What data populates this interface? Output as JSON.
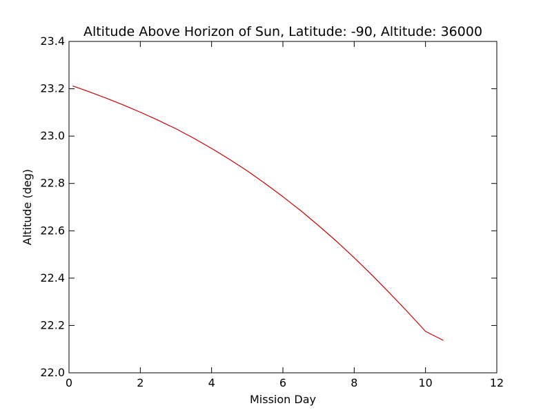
{
  "chart_data": {
    "type": "line",
    "title": "Altitude Above Horizon of Sun, Latitude: -90, Altitude: 36000",
    "xlabel": "Mission Day",
    "ylabel": "Altitude (deg)",
    "xlim": [
      0,
      12
    ],
    "ylim": [
      22.0,
      23.4
    ],
    "xticks": [
      "0",
      "2",
      "4",
      "6",
      "8",
      "10",
      "12"
    ],
    "yticks": [
      "22.0",
      "22.2",
      "22.4",
      "22.6",
      "22.8",
      "23.0",
      "23.2",
      "23.4"
    ],
    "grid": false,
    "line_color": "#cc0000",
    "series": [
      {
        "x": [
          0.1,
          0.5,
          1.0,
          1.5,
          2.0,
          2.5,
          3.0,
          3.5,
          4.0,
          4.5,
          5.0,
          5.5,
          6.0,
          6.5,
          7.0,
          7.5,
          8.0,
          8.5,
          9.0,
          9.5,
          10.0,
          10.5
        ],
        "values": [
          23.212,
          23.191,
          23.163,
          23.133,
          23.101,
          23.067,
          23.031,
          22.991,
          22.948,
          22.902,
          22.853,
          22.8,
          22.744,
          22.685,
          22.622,
          22.556,
          22.486,
          22.413,
          22.336,
          22.257,
          22.175,
          22.137
        ]
      }
    ]
  }
}
